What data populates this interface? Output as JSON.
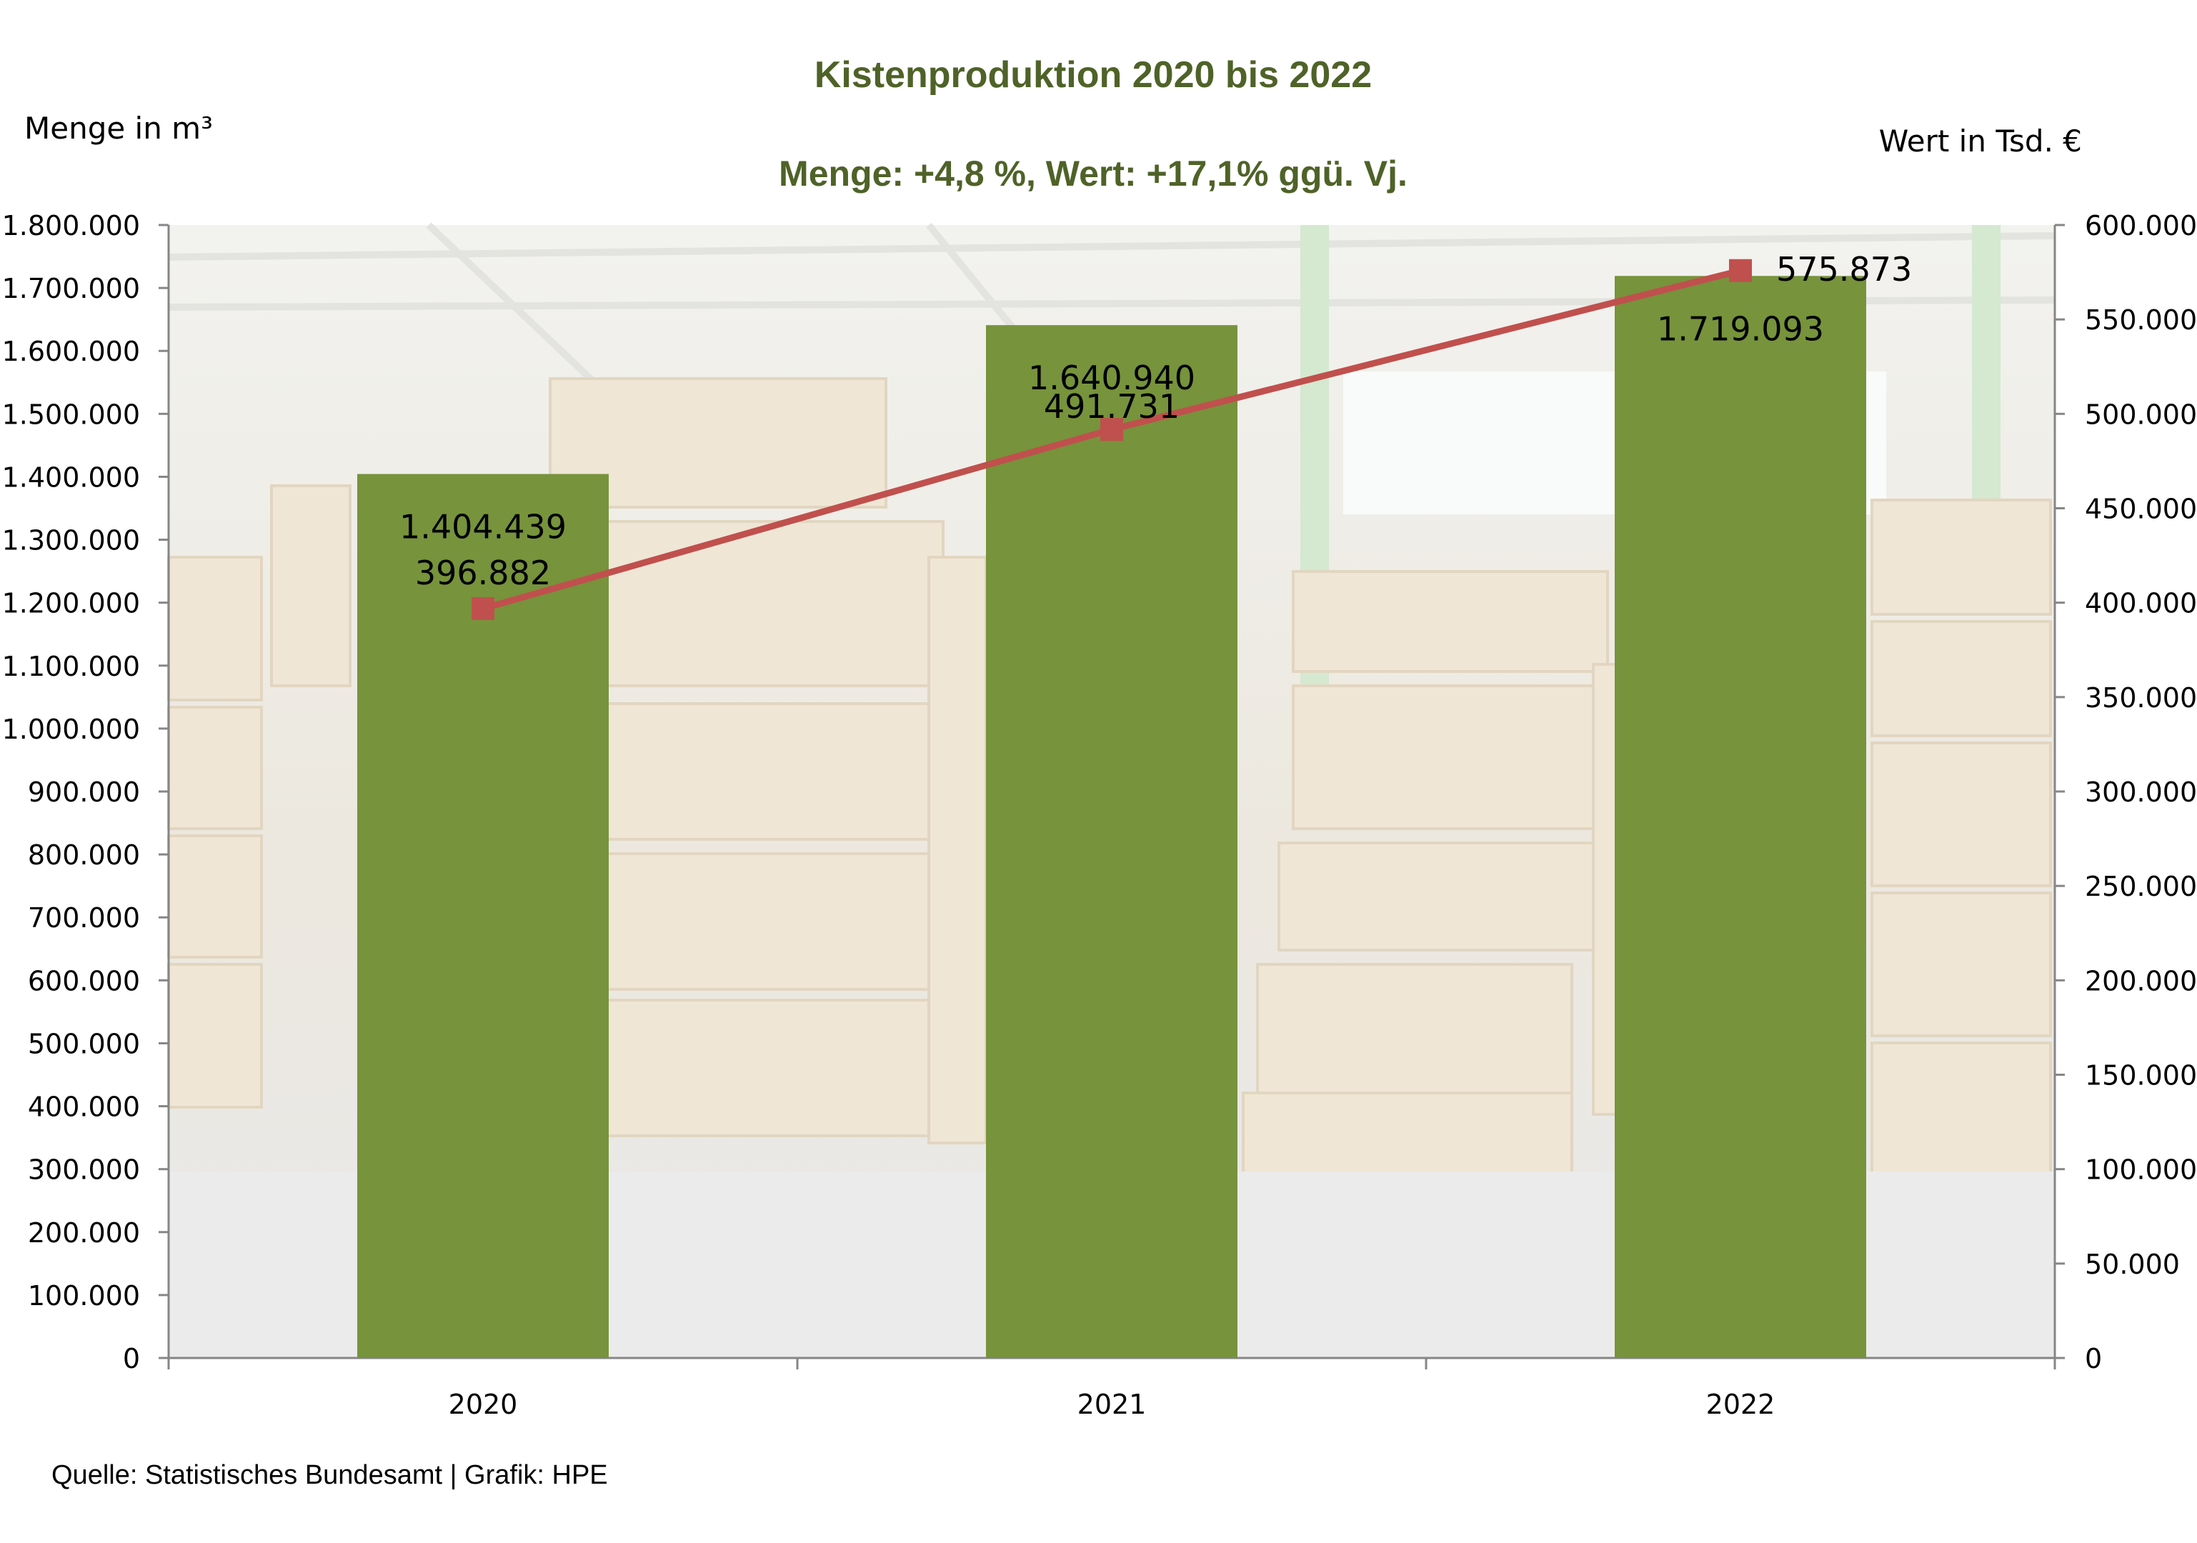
{
  "chart_data": {
    "type": "bar",
    "title": "Kistenproduktion 2020 bis 2022",
    "subtitle": "Menge: +4,8 %, Wert: +17,1% ggü. Vj.",
    "ylabel_left": "Menge in m³",
    "ylabel_right": "Wert in Tsd. €",
    "categories": [
      "2020",
      "2021",
      "2022"
    ],
    "ylim_left": [
      0,
      1800000
    ],
    "ylim_right": [
      0,
      600000
    ],
    "yticks_left": [
      "0",
      "100.000",
      "200.000",
      "300.000",
      "400.000",
      "500.000",
      "600.000",
      "700.000",
      "800.000",
      "900.000",
      "1.000.000",
      "1.100.000",
      "1.200.000",
      "1.300.000",
      "1.400.000",
      "1.500.000",
      "1.600.000",
      "1.700.000",
      "1.800.000"
    ],
    "yticks_right": [
      "0",
      "50.000",
      "100.000",
      "150.000",
      "200.000",
      "250.000",
      "300.000",
      "350.000",
      "400.000",
      "450.000",
      "500.000",
      "550.000",
      "600.000"
    ],
    "series": [
      {
        "kind": "bar",
        "axis": "left",
        "color": "#77933c",
        "values": [
          1404439,
          1640940,
          1719093
        ],
        "labels": [
          "1.404.439",
          "1.640.940",
          "1.719.093"
        ]
      },
      {
        "kind": "line",
        "axis": "right",
        "color": "#c0504d",
        "values": [
          396882,
          491731,
          575873
        ],
        "labels": [
          "396.882",
          "491.731",
          "575.873"
        ]
      }
    ],
    "background": "warehouse-crates-photo",
    "grid": false
  },
  "footer": {
    "source": "Quelle: Statistisches Bundesamt | Grafik: HPE"
  }
}
